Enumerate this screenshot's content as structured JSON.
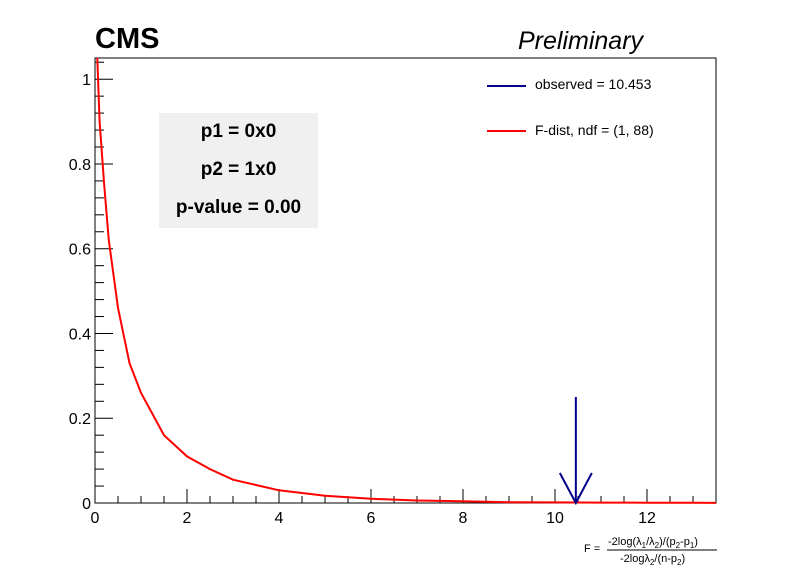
{
  "header": {
    "brand": "CMS",
    "status": "Preliminary"
  },
  "infobox": {
    "p1": "p1 = 0x0",
    "p2": "p2 = 1x0",
    "pvalue": "p-value = 0.00"
  },
  "legend": [
    {
      "label": "observed = 10.453",
      "color": "#00008b"
    },
    {
      "label": "F-dist, ndf = (1, 88)",
      "color": "#ff0000"
    }
  ],
  "chart_data": {
    "type": "line",
    "title": "",
    "xlabel": "F = -2log(λ1/λ2)/(p2-p1) / -2logλ2/(n-p2)",
    "ylabel": "",
    "xlim": [
      0,
      13.5
    ],
    "ylim": [
      0,
      1.05
    ],
    "xticks": [
      "0",
      "2",
      "4",
      "6",
      "8",
      "10",
      "12"
    ],
    "yticks": [
      "0",
      "0.2",
      "0.4",
      "0.6",
      "0.8",
      "1"
    ],
    "series": [
      {
        "name": "F-dist, ndf = (1, 88)",
        "color": "#ff0000",
        "x": [
          0.05,
          0.1,
          0.2,
          0.3,
          0.5,
          0.75,
          1.0,
          1.5,
          2.0,
          2.5,
          3.0,
          4.0,
          5.0,
          6.0,
          7.0,
          8.0,
          9.0,
          10.0,
          11.0,
          12.0,
          13.0,
          13.5
        ],
        "y": [
          1.05,
          0.9,
          0.75,
          0.62,
          0.46,
          0.33,
          0.26,
          0.16,
          0.11,
          0.08,
          0.055,
          0.03,
          0.017,
          0.01,
          0.006,
          0.004,
          0.002,
          0.0015,
          0.001,
          0.0006,
          0.0004,
          0.0003
        ]
      }
    ],
    "observed": {
      "label": "observed = 10.453",
      "value": 10.453,
      "color": "#00008b"
    }
  }
}
